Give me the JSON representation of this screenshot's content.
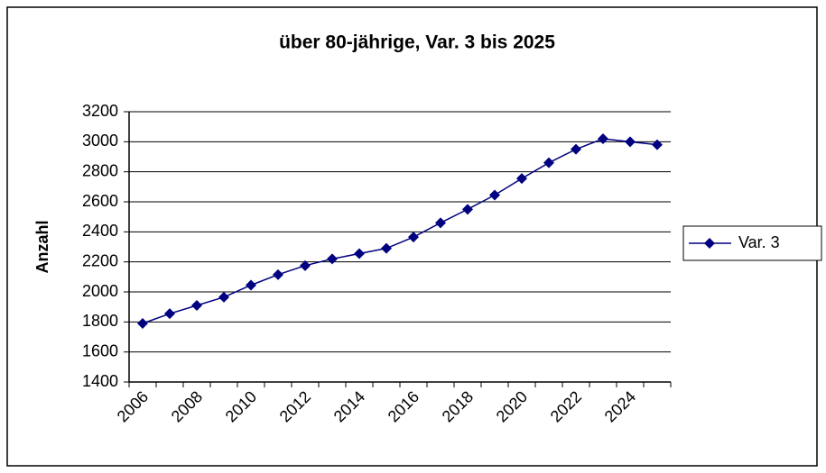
{
  "chart_data": {
    "type": "line",
    "title": "über 80-jährige, Var. 3 bis 2025",
    "y_label": "Anzahl",
    "categories": [
      "2006",
      null,
      "2008",
      null,
      "2010",
      null,
      "2012",
      null,
      "2014",
      null,
      "2016",
      null,
      "2018",
      null,
      "2020",
      null,
      "2022",
      null,
      "2024",
      null
    ],
    "series": [
      {
        "name": "Var. 3",
        "color": "#000080",
        "values": [
          1790,
          1855,
          1910,
          1965,
          2045,
          2115,
          2175,
          2220,
          2255,
          2290,
          2365,
          2460,
          2550,
          2645,
          2755,
          2860,
          2950,
          3020,
          3000,
          2980
        ]
      }
    ],
    "ylim": [
      1400,
      3200
    ],
    "yticks": [
      1400,
      1600,
      1800,
      2000,
      2200,
      2400,
      2600,
      2800,
      3000,
      3200
    ],
    "grid": true,
    "legend": "right"
  }
}
